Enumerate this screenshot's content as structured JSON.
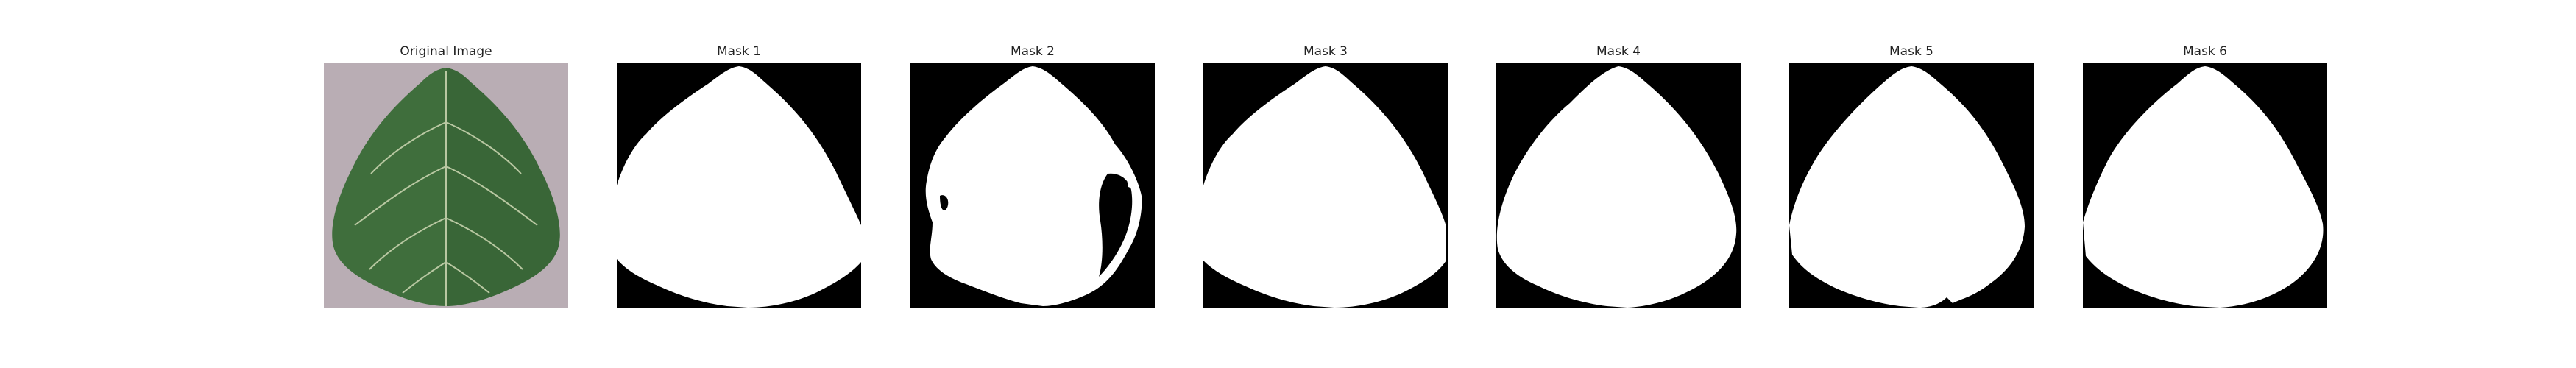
{
  "panels": [
    {
      "title": "Original Image",
      "kind": "photo",
      "description": "green leaf on gray background"
    },
    {
      "title": "Mask 1",
      "kind": "mask"
    },
    {
      "title": "Mask 2",
      "kind": "mask"
    },
    {
      "title": "Mask 3",
      "kind": "mask"
    },
    {
      "title": "Mask 4",
      "kind": "mask"
    },
    {
      "title": "Mask 5",
      "kind": "mask"
    },
    {
      "title": "Mask 6",
      "kind": "mask"
    }
  ],
  "colors": {
    "background": "#ffffff",
    "mask_bg": "#000000",
    "mask_fg": "#ffffff",
    "photo_bg": "#b9adb4",
    "leaf": "#3f6e3c",
    "leaf_dark": "#2f5a2e",
    "vein": "#cfd8b4"
  }
}
